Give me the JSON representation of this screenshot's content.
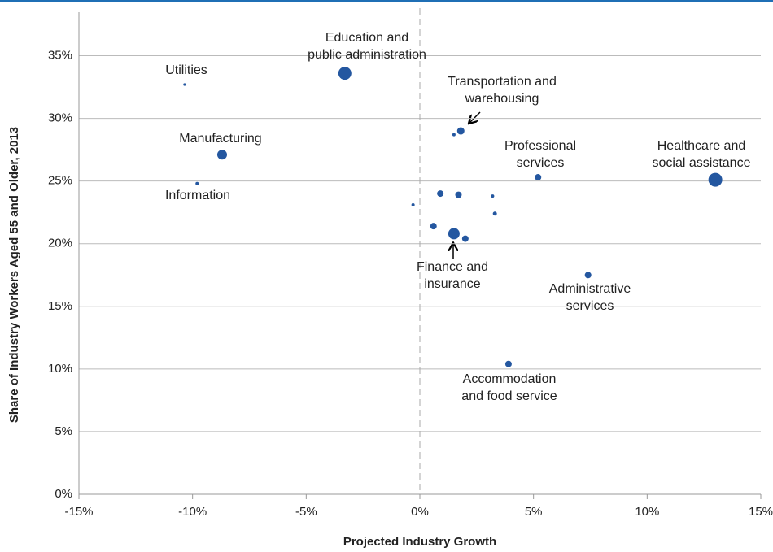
{
  "chart_data": {
    "type": "bubble",
    "x_label": "Projected Industry Growth",
    "y_label": "Share of Industry Workers Aged 55 and Older, 2013",
    "x": [
      -10.35,
      -3.3,
      1.8,
      1.5,
      -8.7,
      -9.8,
      5.2,
      13.0,
      -0.3,
      0.9,
      1.7,
      3.2,
      3.3,
      0.6,
      1.5,
      2.0,
      7.4,
      3.9
    ],
    "y": [
      32.7,
      33.6,
      29.0,
      28.7,
      27.1,
      24.8,
      25.3,
      25.1,
      23.1,
      24.0,
      23.9,
      23.8,
      22.4,
      21.4,
      20.8,
      20.4,
      17.5,
      10.4
    ],
    "sizes": [
      1.6,
      8,
      4.5,
      2,
      6,
      2,
      4,
      8.5,
      2,
      4,
      4,
      2,
      2.5,
      4,
      7,
      4,
      4,
      4
    ],
    "labels": [
      [
        "Utilities"
      ],
      [
        "Education and",
        "public administration"
      ],
      [
        "Transportation and",
        "warehousing"
      ],
      null,
      [
        "Manufacturing"
      ],
      [
        "Information"
      ],
      [
        "Professional",
        "services"
      ],
      [
        "Healthcare and",
        "social assistance"
      ],
      null,
      null,
      null,
      null,
      null,
      null,
      [
        "Finance and",
        "insurance"
      ],
      null,
      [
        "Administrative",
        "services"
      ],
      [
        "Accommodation",
        "and food service"
      ]
    ],
    "color": "#2457a0",
    "reference_x": 0,
    "xlim": [
      -15,
      15
    ],
    "xticks": [
      {
        "value": -15,
        "label": "-15%"
      },
      {
        "value": -10,
        "label": "-10%"
      },
      {
        "value": -5,
        "label": "-5%"
      },
      {
        "value": 0,
        "label": "0%"
      },
      {
        "value": 5,
        "label": "5%"
      },
      {
        "value": 10,
        "label": "10%"
      },
      {
        "value": 15,
        "label": "15%"
      }
    ],
    "ylim": [
      0,
      37.5
    ],
    "yticks": [
      {
        "value": 0,
        "label": "0%"
      },
      {
        "value": 5,
        "label": "5%"
      },
      {
        "value": 10,
        "label": "10%"
      },
      {
        "value": 15,
        "label": "15%"
      },
      {
        "value": 20,
        "label": "20%"
      },
      {
        "value": 25,
        "label": "25%"
      },
      {
        "value": 30,
        "label": "30%"
      },
      {
        "value": 35,
        "label": "35%"
      }
    ],
    "grid": true
  }
}
